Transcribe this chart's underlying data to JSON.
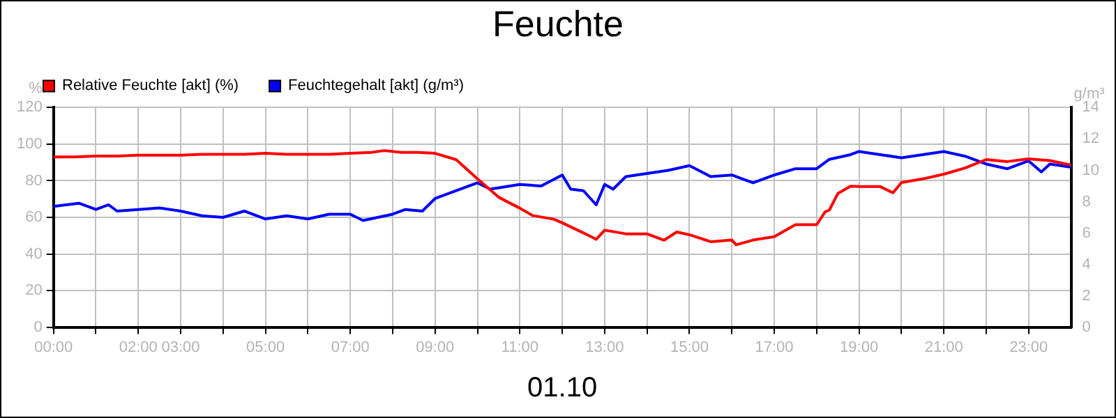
{
  "chart_data": {
    "type": "line",
    "title": "Feuchte",
    "xlabel": "01.10",
    "ylabel": "%",
    "y2label": "g/m³",
    "xlim": [
      0,
      24
    ],
    "xticks": [
      {
        "value": 0,
        "label": "00:00"
      },
      {
        "value": 1,
        "label": null
      },
      {
        "value": 2,
        "label": "02:00"
      },
      {
        "value": 3,
        "label": "03:00"
      },
      {
        "value": 4,
        "label": null
      },
      {
        "value": 5,
        "label": "05:00"
      },
      {
        "value": 6,
        "label": null
      },
      {
        "value": 7,
        "label": "07:00"
      },
      {
        "value": 8,
        "label": null
      },
      {
        "value": 9,
        "label": "09:00"
      },
      {
        "value": 10,
        "label": null
      },
      {
        "value": 11,
        "label": "11:00"
      },
      {
        "value": 12,
        "label": null
      },
      {
        "value": 13,
        "label": "13:00"
      },
      {
        "value": 14,
        "label": null
      },
      {
        "value": 15,
        "label": "15:00"
      },
      {
        "value": 16,
        "label": null
      },
      {
        "value": 17,
        "label": "17:00"
      },
      {
        "value": 18,
        "label": null
      },
      {
        "value": 19,
        "label": "19:00"
      },
      {
        "value": 20,
        "label": null
      },
      {
        "value": 21,
        "label": "21:00"
      },
      {
        "value": 22,
        "label": null
      },
      {
        "value": 23,
        "label": "23:00"
      }
    ],
    "ylim": [
      0,
      120
    ],
    "yticks": [
      0,
      20,
      40,
      60,
      80,
      100,
      120
    ],
    "y2lim": [
      0,
      14
    ],
    "y2ticks": [
      0,
      2,
      4,
      6,
      8,
      10,
      12,
      14
    ],
    "grid": true,
    "legend": "top left",
    "marker": "none",
    "line_style": "solid",
    "series": [
      {
        "name": "Relative Feuchte [akt] (%)",
        "color": "#ff0000",
        "x": [
          0,
          0.5,
          1,
          1.5,
          2,
          2.5,
          3,
          3.5,
          4,
          4.5,
          5,
          5.5,
          6,
          6.5,
          7,
          7.5,
          7.8,
          8.2,
          8.6,
          9,
          9.5,
          10,
          10.5,
          11,
          11.3,
          11.8,
          12,
          12.5,
          12.8,
          13,
          13.5,
          14,
          14.4,
          14.7,
          15,
          15.5,
          16,
          16.1,
          16.5,
          17,
          17.5,
          17.9,
          18,
          18.2,
          18.3,
          18.5,
          18.8,
          19,
          19.5,
          19.8,
          20,
          20.5,
          21,
          21.5,
          22,
          22.5,
          23,
          23.5,
          24
        ],
        "values": [
          93,
          93,
          93.5,
          93.5,
          94,
          94,
          94,
          94.5,
          94.5,
          94.5,
          95,
          94.5,
          94.5,
          94.5,
          95,
          95.5,
          96.5,
          95.5,
          95.5,
          95,
          91.5,
          81,
          71,
          65,
          61,
          59,
          57,
          51.5,
          48,
          53,
          51,
          51,
          47.5,
          52,
          50.5,
          46.7,
          47.6,
          45,
          47.6,
          49.4,
          56,
          56,
          56,
          63,
          64,
          73,
          77,
          76.8,
          76.8,
          73.4,
          79,
          81,
          83.6,
          87,
          91.6,
          90.5,
          92,
          91,
          88.6
        ]
      },
      {
        "name": "Feuchtegehalt [akt] (g/m³)",
        "color": "#0000ff",
        "axis": "y2",
        "x": [
          0,
          0.6,
          1,
          1.3,
          1.5,
          2,
          2.5,
          3,
          3.5,
          4,
          4.5,
          5,
          5.5,
          6,
          6.5,
          7,
          7.3,
          8,
          8.3,
          8.7,
          9,
          9.5,
          10,
          10.3,
          11,
          11.5,
          12,
          12.2,
          12.5,
          12.8,
          13,
          13.2,
          13.5,
          14,
          14.5,
          15,
          15.5,
          16,
          16.5,
          17,
          17.5,
          18,
          18.3,
          18.8,
          19,
          19.5,
          20,
          20.5,
          21,
          21.5,
          22,
          22.5,
          23,
          23.3,
          23.5,
          24
        ],
        "values": [
          7.7,
          7.9,
          7.5,
          7.8,
          7.4,
          7.5,
          7.6,
          7.4,
          7.1,
          7,
          7.4,
          6.9,
          7.1,
          6.9,
          7.2,
          7.2,
          6.8,
          7.2,
          7.5,
          7.4,
          8.2,
          8.7,
          9.2,
          8.8,
          9.1,
          9,
          9.7,
          8.8,
          8.7,
          7.8,
          9.1,
          8.8,
          9.6,
          9.8,
          10,
          10.3,
          9.6,
          9.7,
          9.2,
          9.7,
          10.1,
          10.1,
          10.7,
          11,
          11.2,
          11,
          10.8,
          11,
          11.2,
          10.9,
          10.4,
          10.1,
          10.6,
          9.9,
          10.4,
          10.2
        ]
      }
    ]
  }
}
